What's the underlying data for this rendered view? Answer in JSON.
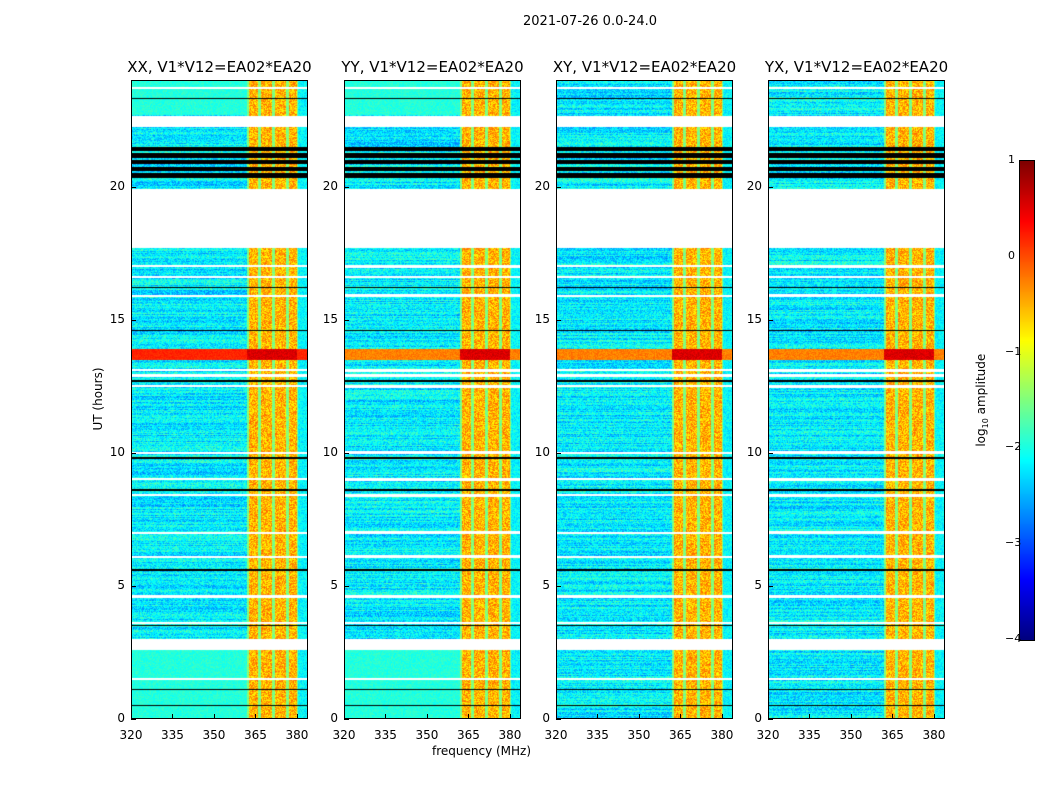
{
  "chart_data": {
    "type": "heatmap",
    "suptitle": "2021-07-26 0.0-24.0",
    "xlabel": "frequency (MHz)",
    "ylabel": "UT (hours)",
    "xlim": [
      320,
      384
    ],
    "ylim": [
      0,
      24
    ],
    "xticks": [
      "320",
      "335",
      "350",
      "365",
      "380"
    ],
    "yticks": [
      "0",
      "5",
      "10",
      "15",
      "20"
    ],
    "panels": [
      {
        "title": "XX, V1*V12=EA02*EA20"
      },
      {
        "title": "YY, V1*V12=EA02*EA20"
      },
      {
        "title": "XY, V1*V12=EA02*EA20"
      },
      {
        "title": "YX, V1*V12=EA02*EA20"
      }
    ],
    "colorbar": {
      "label_prefix": "log",
      "label_sub": "10",
      "label_suffix": " amplitude",
      "colormap": "jet",
      "range": [
        -4,
        1
      ],
      "ticks": [
        "1",
        "0",
        "−1",
        "−2",
        "−3",
        "−4"
      ]
    },
    "rfi_channels_mhz": [
      [
        362.5,
        366
      ],
      [
        367,
        371
      ],
      [
        372,
        376
      ],
      [
        377,
        380
      ]
    ],
    "flagged_hours_white": [
      [
        22.25,
        22.66
      ],
      [
        17.7,
        19.9
      ],
      [
        2.6,
        3.0
      ]
    ],
    "flagged_hours_black": [
      [
        20.3,
        21.5
      ]
    ],
    "strong_band_hours": [
      13.5,
      13.9
    ]
  }
}
